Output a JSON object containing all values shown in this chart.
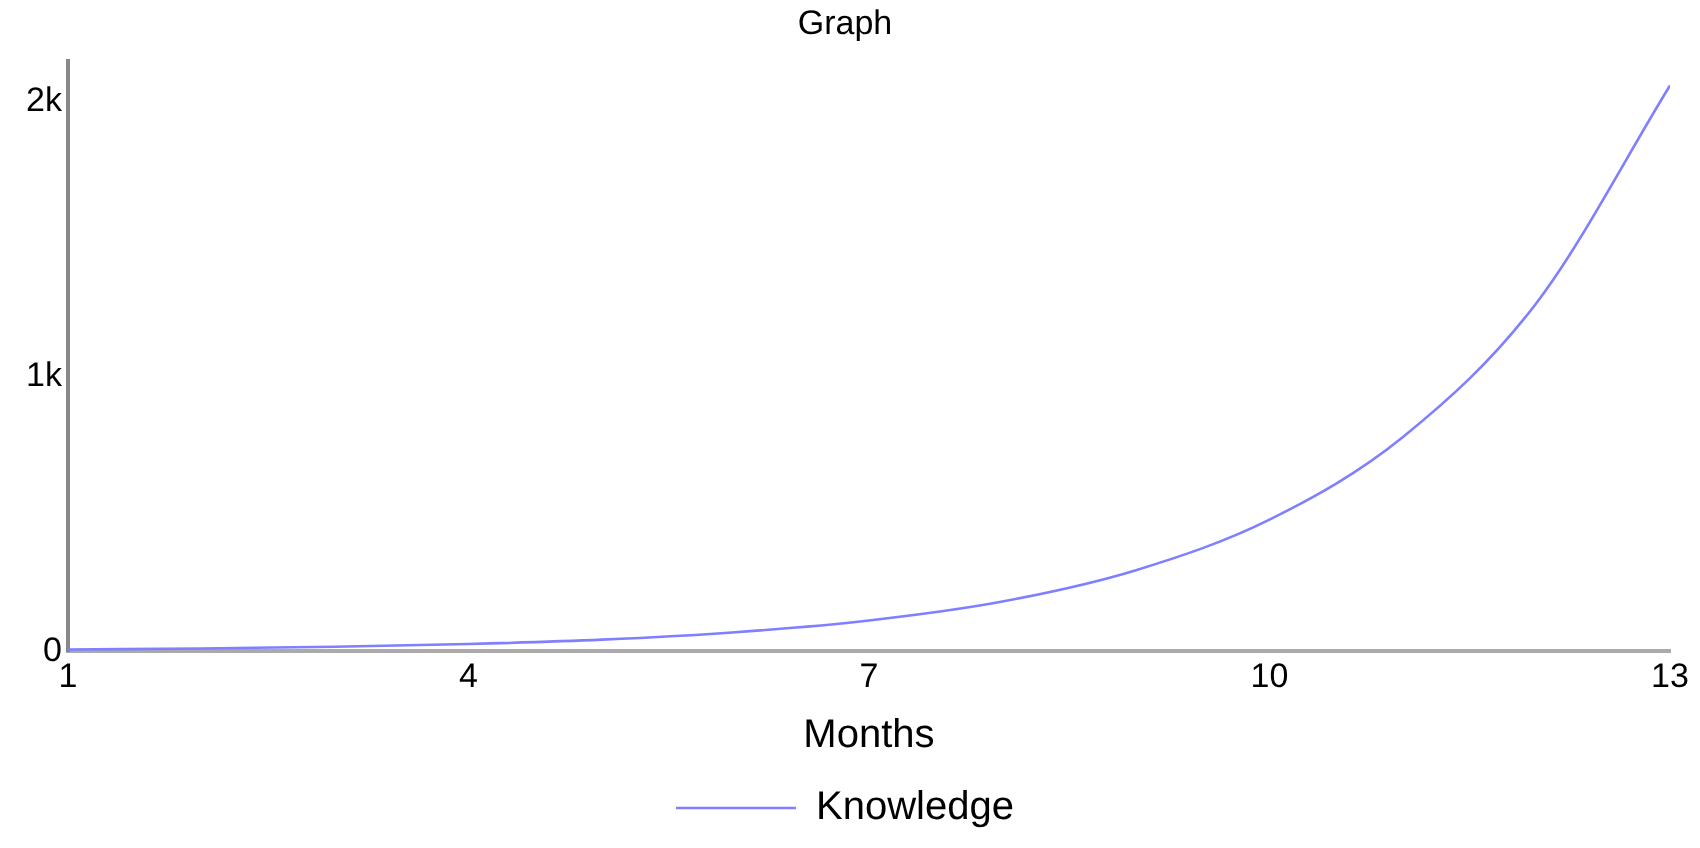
{
  "chart_data": {
    "type": "line",
    "title": "Graph",
    "xlabel": "Months",
    "x": [
      1,
      2,
      3,
      4,
      5,
      6,
      7,
      8,
      9,
      10,
      11,
      12,
      13
    ],
    "series": [
      {
        "name": "Knowledge",
        "color": "#7f7fff",
        "values": [
          6,
          10,
          16,
          26,
          42,
          69,
          112,
          181,
          295,
          479,
          780,
          1268,
          2060
        ]
      }
    ],
    "xlim": [
      1,
      13
    ],
    "xticks": [
      1,
      4,
      7,
      10,
      13
    ],
    "ylim": [
      0,
      2150
    ],
    "yticks": [
      0,
      {
        "value": 1000,
        "label": "1k"
      },
      {
        "value": 2000,
        "label": "2k"
      }
    ],
    "grid": false,
    "legend": "bottom",
    "marker": "none",
    "line_style": "solid"
  }
}
